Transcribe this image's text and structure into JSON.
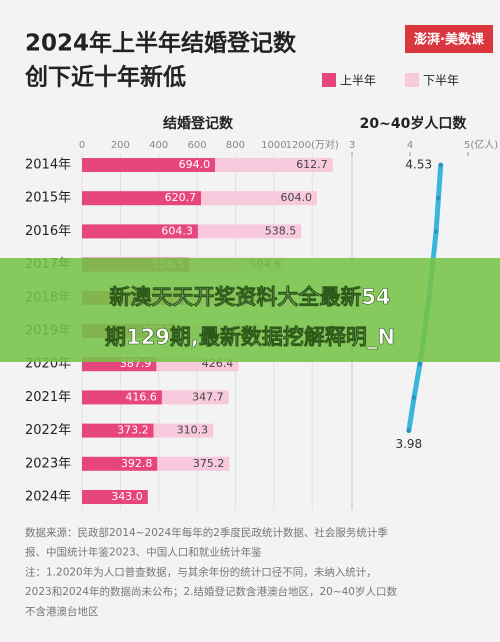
{
  "header": {
    "title_lines": [
      "2024年上半年结婚登记数",
      "创下近十年新低"
    ],
    "logo": "澎湃·美数课"
  },
  "chart_data": [
    {
      "type": "stacked-hbar",
      "title": "结婚登记数",
      "categories": [
        "2014年",
        "2015年",
        "2016年",
        "2017年",
        "2018年",
        "2019年",
        "2020年",
        "2021年",
        "2022年",
        "2023年",
        "2024年"
      ],
      "series": [
        {
          "name": "上半年",
          "color": "#e6457d",
          "values": [
            694.0,
            620.7,
            604.3,
            558.5,
            530.0,
            497.2,
            387.9,
            416.6,
            373.2,
            392.8,
            343.0
          ],
          "value_labels": [
            "694.0",
            "620.7",
            "604.3",
            "558.5",
            "530.0",
            "497.2",
            "387.9",
            "416.6",
            "373.2",
            "392.8",
            "343.0"
          ]
        },
        {
          "name": "下半年",
          "color": "#f8c9dc",
          "values": [
            612.7,
            604.0,
            538.5,
            504.6,
            483.9,
            430.1,
            426.4,
            347.7,
            310.3,
            375.2,
            null
          ],
          "value_labels": [
            "612.7",
            "604.0",
            "538.5",
            "504.6",
            "483.9",
            "430.1",
            "426.4",
            "347.7",
            "310.3",
            "375.2",
            null
          ]
        }
      ],
      "xlim": [
        0,
        1350
      ],
      "xticks": [
        0,
        200,
        400,
        600,
        800,
        1000,
        {
          "value": 1200,
          "label": "1200(万对)"
        }
      ],
      "grid": true,
      "legend": "top-right"
    },
    {
      "type": "vline",
      "title": "20~40岁人口数",
      "color": "#3ab7d8",
      "marker_color": "#2a8fc4",
      "values": [
        4.53,
        4.49,
        4.45,
        4.39,
        4.33,
        4.25,
        4.17,
        4.07,
        3.98,
        null,
        null
      ],
      "value_labels": [
        "4.53",
        null,
        null,
        null,
        null,
        null,
        null,
        null,
        "3.98",
        null,
        null
      ],
      "xlim": [
        3,
        5
      ],
      "xticks": [
        3,
        4,
        {
          "value": 5,
          "label": "5(亿人)"
        }
      ]
    }
  ],
  "footer": {
    "lines": [
      "数据来源：民政部2014~2024年每年的2季度民政统计数据、社会服务统计季",
      "报、中国统计年鉴2023、中国人口和就业统计年鉴",
      "注：1.2020年为人口普查数据，与其余年份的统计口径不同，未纳入统计，",
      "2023和2024年的数据尚未公布；2.结婚登记数含港澳台地区，20~40岁人口数",
      "不含港澳台地区"
    ]
  },
  "overlay": {
    "lines": [
      "新澳天天开奖资料大全最新54",
      "期129期,最新数据挖解释明_N"
    ]
  }
}
